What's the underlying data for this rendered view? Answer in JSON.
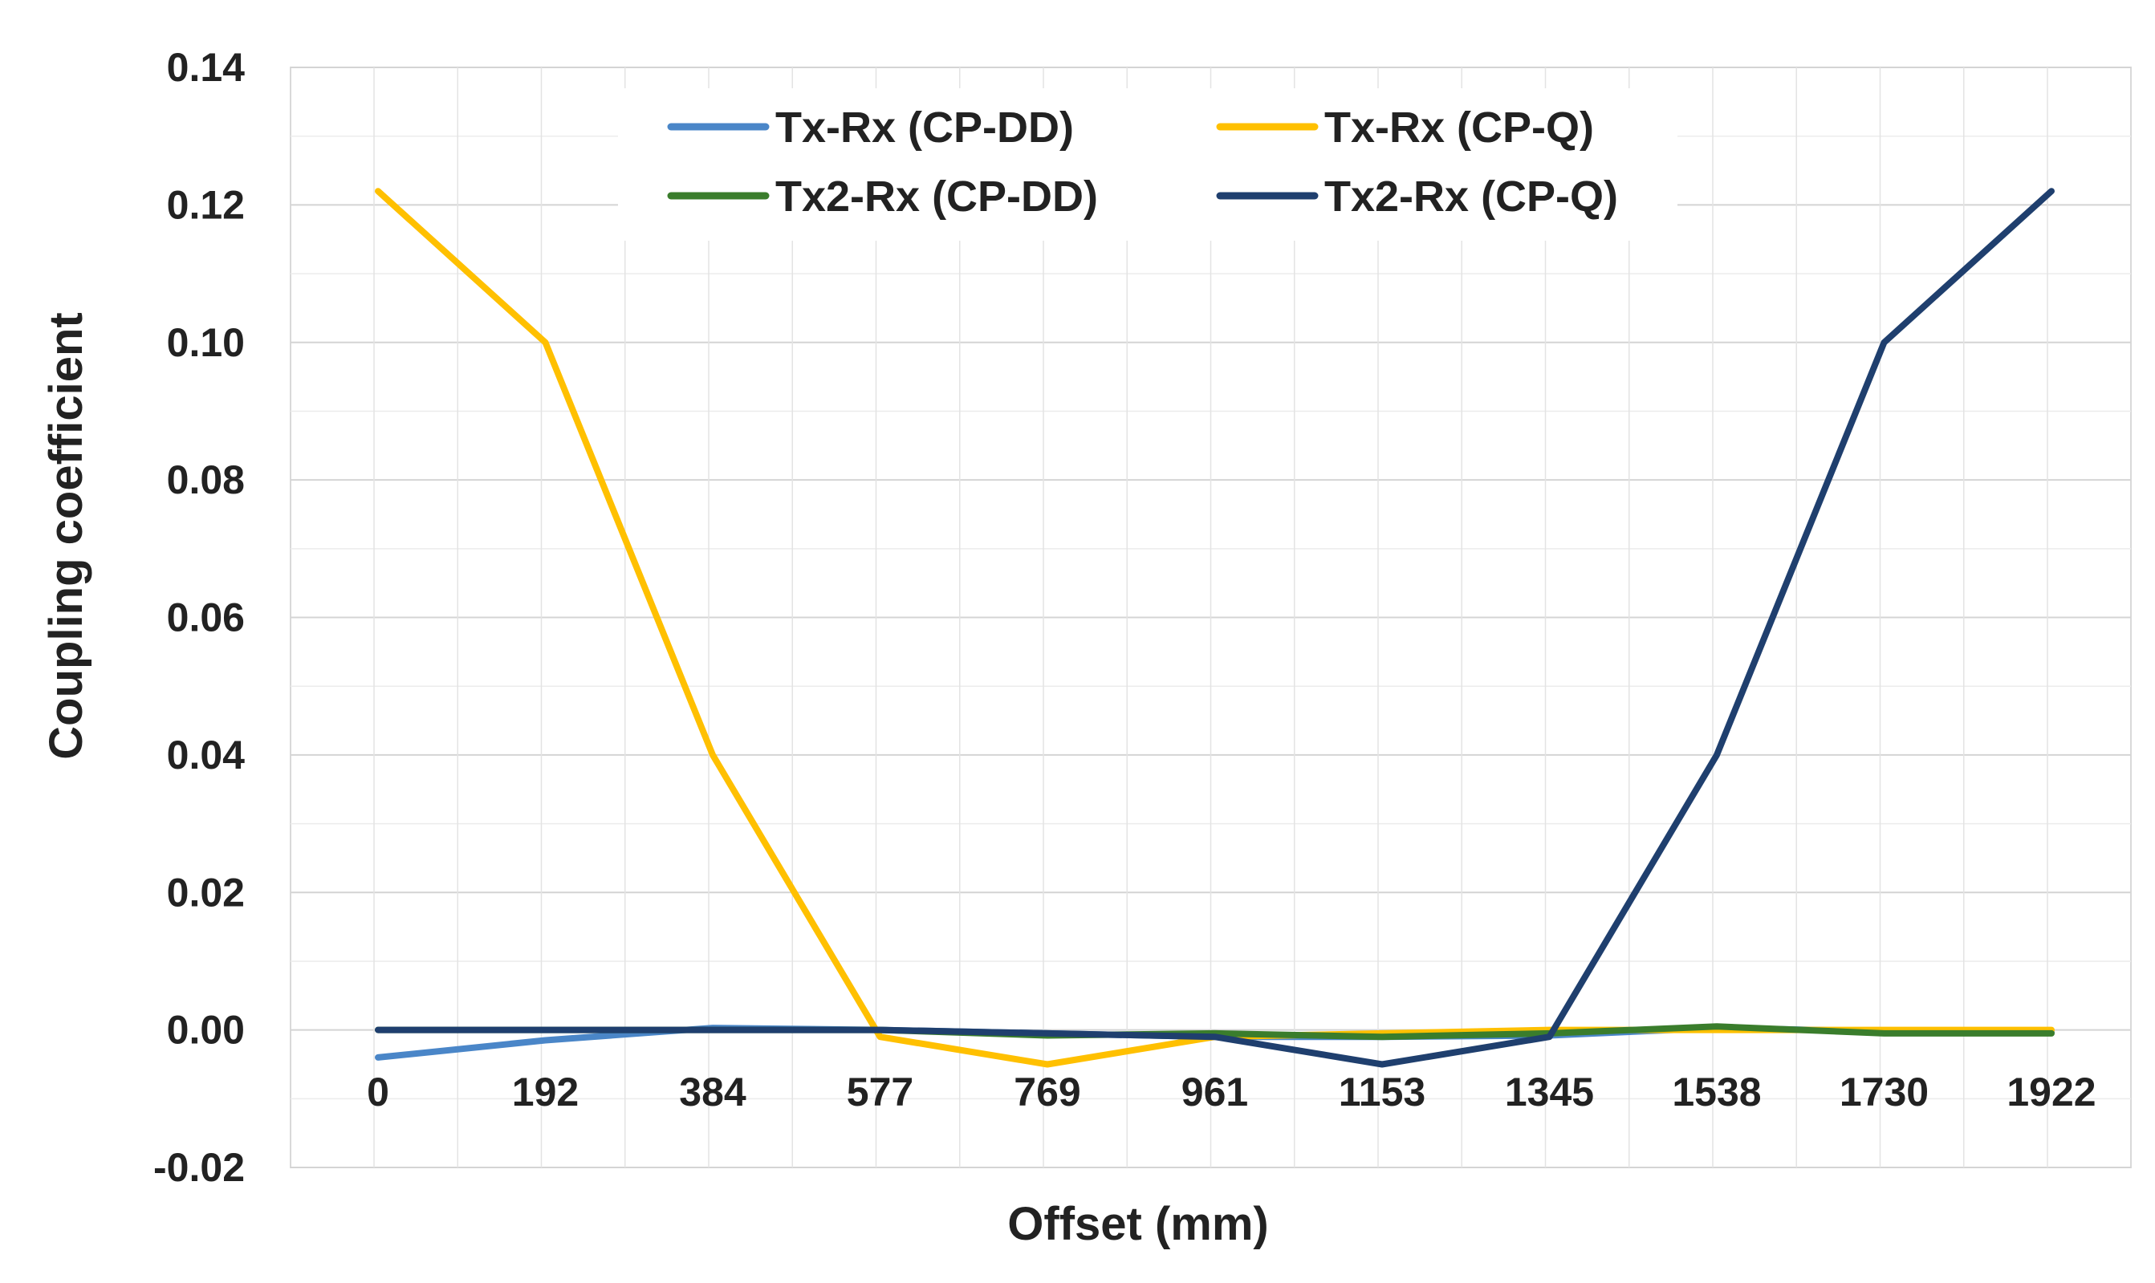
{
  "chart_data": {
    "type": "line",
    "title": "",
    "xlabel": "Offset (mm)",
    "ylabel": "Coupling coefficient",
    "categories": [
      "0",
      "192",
      "384",
      "577",
      "769",
      "961",
      "1153",
      "1345",
      "1538",
      "1730",
      "1922"
    ],
    "ylim": [
      -0.02,
      0.14
    ],
    "yticks": [
      "0.14",
      "0.12",
      "0.10",
      "0.08",
      "0.06",
      "0.04",
      "0.02",
      "0.00",
      "-0.02"
    ],
    "ytick_values": [
      0.14,
      0.12,
      0.1,
      0.08,
      0.06,
      0.04,
      0.02,
      0.0,
      -0.02
    ],
    "grid": true,
    "legend_position": "top",
    "series": [
      {
        "name": "Tx-Rx (CP-DD)",
        "color": "#4a86c8",
        "values": [
          -0.004,
          -0.0015,
          0.0003,
          0.0,
          -0.0005,
          -0.001,
          -0.001,
          -0.0008,
          0.0003,
          -0.0002,
          -0.0003
        ]
      },
      {
        "name": "Tx-Rx (CP-Q)",
        "color": "#ffc000",
        "values": [
          0.122,
          0.1,
          0.04,
          -0.001,
          -0.005,
          -0.001,
          -0.0005,
          0.0,
          0.0,
          0.0,
          0.0
        ]
      },
      {
        "name": "Tx2-Rx (CP-DD)",
        "color": "#3a7d2c",
        "values": [
          0.0,
          0.0,
          0.0,
          0.0,
          -0.0008,
          -0.0005,
          -0.001,
          -0.0005,
          0.0005,
          -0.0005,
          -0.0005
        ]
      },
      {
        "name": "Tx2-Rx (CP-Q)",
        "color": "#1f3f6e",
        "values": [
          0.0,
          0.0,
          0.0,
          0.0,
          -0.0005,
          -0.001,
          -0.005,
          -0.001,
          0.04,
          0.1,
          0.122
        ]
      }
    ]
  }
}
